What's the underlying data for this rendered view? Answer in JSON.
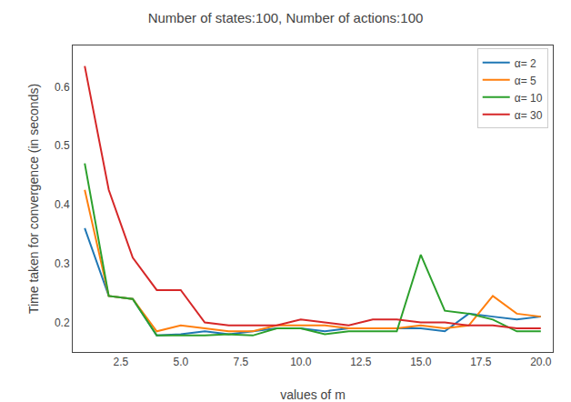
{
  "chart_data": {
    "type": "line",
    "title": "Number of states:100, Number of actions:100",
    "xlabel": "values of m",
    "ylabel": "Time taken for convergence (in seconds)",
    "x": [
      1,
      2,
      3,
      4,
      5,
      6,
      7,
      8,
      9,
      10,
      11,
      12,
      13,
      14,
      15,
      16,
      17,
      18,
      19,
      20
    ],
    "series": [
      {
        "name": "α= 2",
        "color": "#1f77b4",
        "values": [
          0.36,
          0.245,
          0.24,
          0.178,
          0.18,
          0.185,
          0.18,
          0.185,
          0.19,
          0.19,
          0.185,
          0.19,
          0.19,
          0.19,
          0.19,
          0.185,
          0.215,
          0.21,
          0.205,
          0.21
        ]
      },
      {
        "name": "α= 5",
        "color": "#ff7f0e",
        "values": [
          0.425,
          0.245,
          0.24,
          0.185,
          0.195,
          0.19,
          0.185,
          0.185,
          0.195,
          0.195,
          0.195,
          0.19,
          0.19,
          0.19,
          0.195,
          0.19,
          0.195,
          0.245,
          0.215,
          0.21
        ]
      },
      {
        "name": "α= 10",
        "color": "#2ca02c",
        "values": [
          0.47,
          0.245,
          0.24,
          0.178,
          0.178,
          0.178,
          0.18,
          0.178,
          0.19,
          0.19,
          0.18,
          0.185,
          0.185,
          0.185,
          0.315,
          0.22,
          0.215,
          0.205,
          0.185,
          0.185
        ]
      },
      {
        "name": "α= 30",
        "color": "#d62728",
        "values": [
          0.635,
          0.425,
          0.31,
          0.255,
          0.255,
          0.2,
          0.195,
          0.195,
          0.195,
          0.205,
          0.2,
          0.195,
          0.205,
          0.205,
          0.2,
          0.2,
          0.195,
          0.195,
          0.19,
          0.19
        ]
      }
    ],
    "xlim": [
      0.5,
      20.5
    ],
    "xticks": [
      2.5,
      {
        "value": 5.0,
        "label": "5.0"
      },
      7.5,
      {
        "value": 10.0,
        "label": "10.0"
      },
      12.5,
      {
        "value": 15.0,
        "label": "15.0"
      },
      17.5,
      {
        "value": 20.0,
        "label": "20.0"
      }
    ],
    "ylim": [
      0.15,
      0.67
    ],
    "yticks": [
      0.2,
      0.3,
      0.4,
      0.5,
      0.6
    ],
    "grid": false,
    "legend": "upper right"
  }
}
